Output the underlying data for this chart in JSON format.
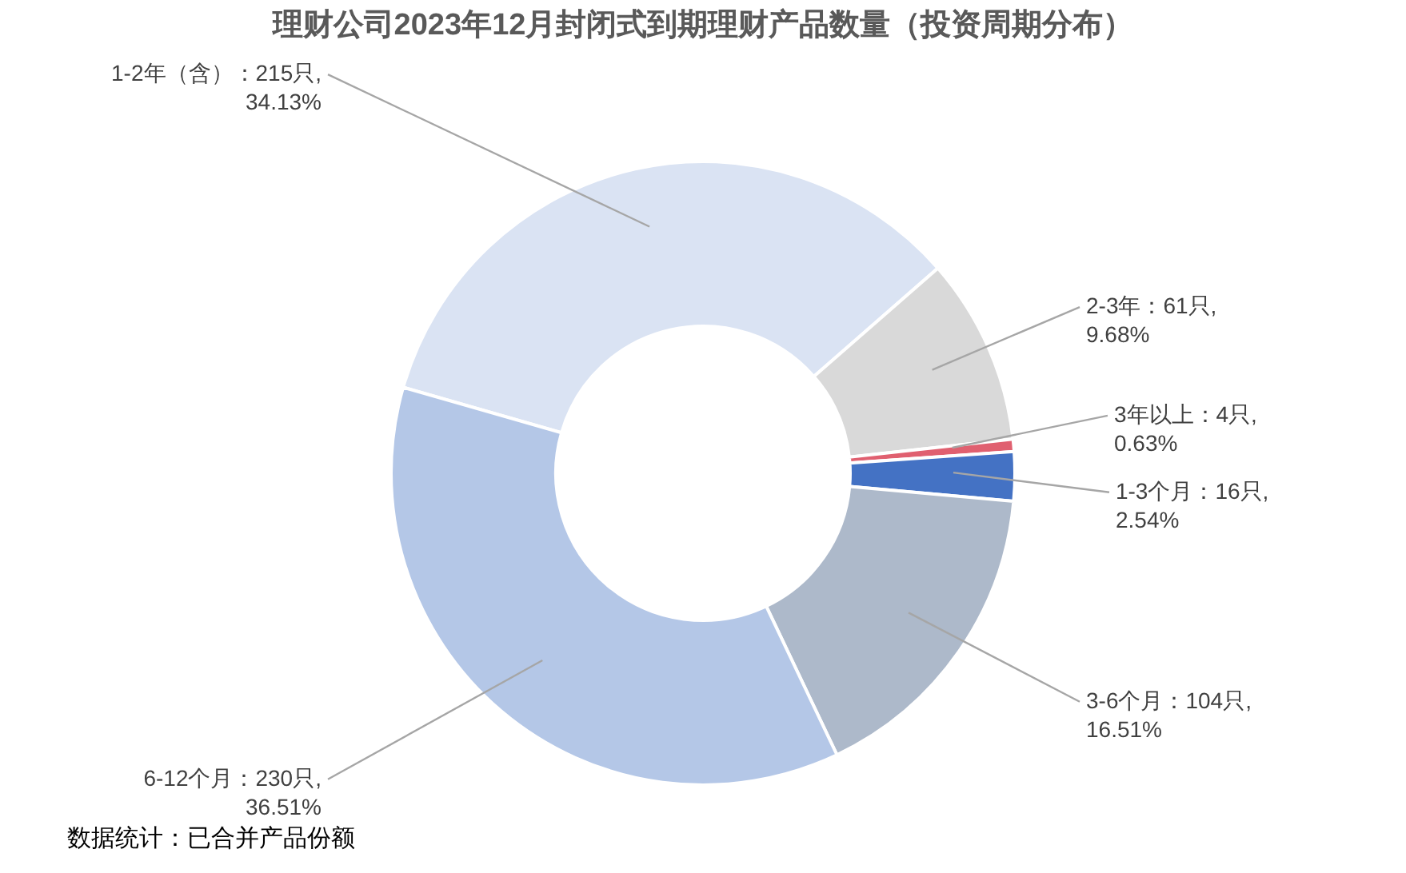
{
  "chart_data": {
    "type": "donut",
    "title": "理财公司2023年12月封闭式到期理财产品数量（投资周期分布）",
    "categories": [
      "1-2年（含）",
      "2-3年",
      "3年以上",
      "1-3个月",
      "3-6个月",
      "6-12个月"
    ],
    "values": [
      215,
      61,
      4,
      16,
      104,
      230
    ],
    "value_labels": [
      "215只, 34.13%",
      "61只, 9.68%",
      "4只, 0.63%",
      "16只, 2.54%",
      "104只, 16.51%",
      "230只, 36.51%"
    ],
    "colors": [
      "#dae3f3",
      "#d9d9d9",
      "#e06070",
      "#4472c4",
      "#adb9ca",
      "#b4c7e7"
    ],
    "annotations": [
      "数据统计：已合并产品份额"
    ]
  }
}
